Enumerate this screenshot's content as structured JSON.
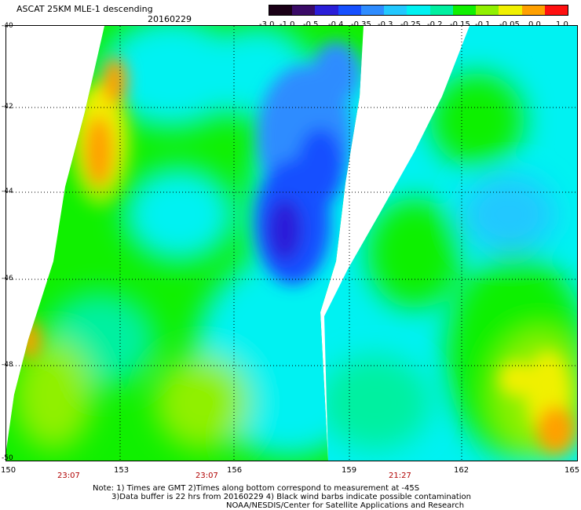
{
  "header": {
    "title": "ASCAT 25KM MLE-1 descending",
    "date": "20160229"
  },
  "colorbar": {
    "labels": [
      "-3.0",
      "-1.0",
      "-0.5",
      "-0.4",
      "-0.35",
      "-0.3",
      "-0.25",
      "-0.2",
      "-0.15",
      "-0.1",
      "-0.05",
      "0.0",
      "1.0"
    ],
    "colors": [
      "#1a0016",
      "#3a0a66",
      "#2a1ed8",
      "#1650ff",
      "#2e8cff",
      "#22c8ff",
      "#00f2f2",
      "#00f0a0",
      "#10f000",
      "#90f000",
      "#f0f000",
      "#ffa000",
      "#ff1010"
    ]
  },
  "axes": {
    "lat_labels": [
      "-40",
      "-42",
      "-44",
      "-46",
      "-48",
      "-50"
    ],
    "lon_labels": [
      "150",
      "153",
      "156",
      "159",
      "162",
      "165"
    ]
  },
  "time_labels": [
    "23:07",
    "23:07",
    "21:27"
  ],
  "notes": {
    "line1": "Note: 1) Times are GMT 2)Times along bottom correspond to measurement at -45S",
    "line2": "3)Data buffer is 22 hrs from 20160229 4) Black wind barbs indicate possible contamination",
    "line3": "NOAA/NESDIS/Center for Satellite Applications and Research"
  }
}
